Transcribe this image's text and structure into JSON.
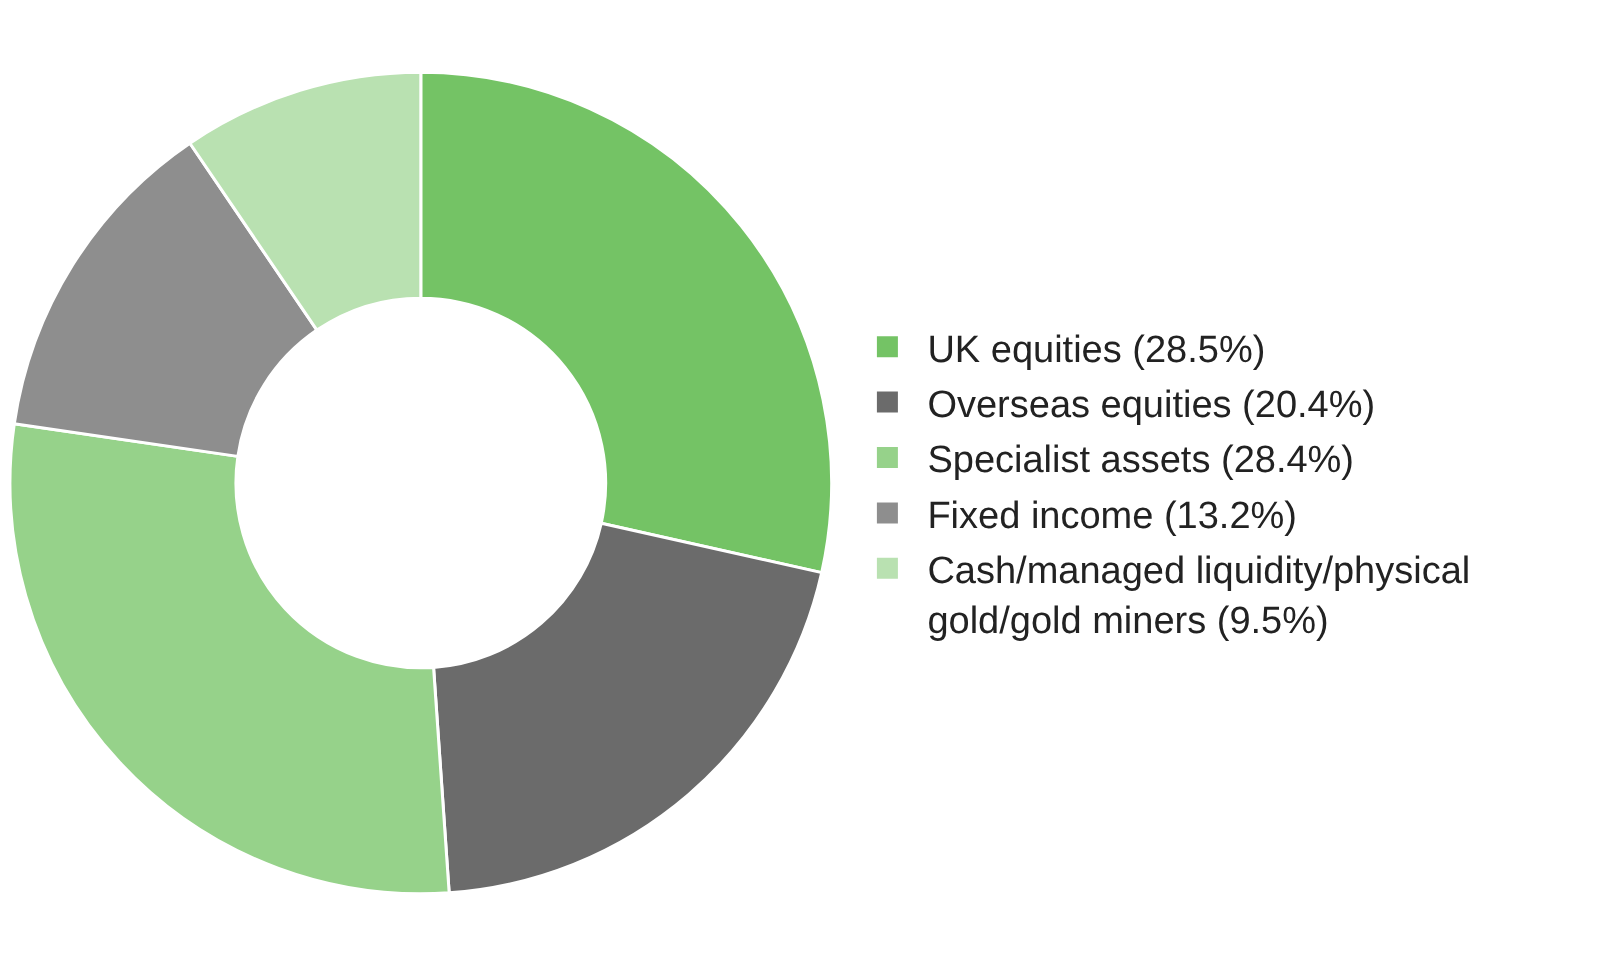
{
  "chart_data": {
    "type": "donut",
    "categories": [
      "UK equities (28.5%)",
      "Overseas equities (20.4%)",
      "Specialist assets (28.4%)",
      "Fixed income (13.2%)",
      "Cash/managed liquidity/physical gold/gold miners (9.5%)"
    ],
    "values": [
      28.5,
      20.4,
      28.4,
      13.2,
      9.5
    ],
    "colors": [
      "#74c365",
      "#6b6b6b",
      "#96d28a",
      "#8e8e8e",
      "#b9e1b1"
    ],
    "legend": "right"
  }
}
